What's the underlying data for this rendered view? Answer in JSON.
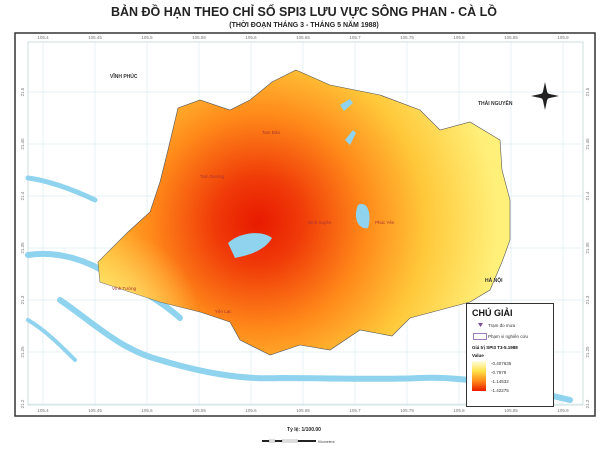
{
  "title": "BẢN ĐỒ HẠN THEO CHỈ SỐ SPI3 LƯU VỰC SÔNG PHAN - CÀ LỒ",
  "subtitle": "(THỜI ĐOẠN THÁNG 3 - THÁNG 5 NĂM 1988)",
  "longitude_ticks": [
    "105.4",
    "105.45",
    "105.5",
    "105.55",
    "105.6",
    "105.65",
    "105.7",
    "105.75",
    "105.8",
    "105.85",
    "105.9"
  ],
  "latitude_ticks": [
    "21.5",
    "21.45",
    "21.4",
    "21.35",
    "21.3",
    "21.25",
    "21.2"
  ],
  "regions": {
    "vinh_phuc": "VĨNH PHÚC",
    "thai_nguyen": "THÁI NGUYÊN",
    "ha_noi": "HÀ NỘI"
  },
  "districts": {
    "tam_dao": "Tam Đảo",
    "tam_duong": "Tam Dương",
    "binh_xuyen": "Bình Xuyên",
    "phuc_yen": "Phúc Yên",
    "vinh_tuong": "Vĩnh Tường",
    "yen_lac": "Yên Lạc"
  },
  "legend": {
    "title": "CHÚ GIẢI",
    "station": "Trạm đo mưa",
    "boundary": "Phạm vi nghiên cứu",
    "value_title": "Giá trị SPI3 T3-5.1988",
    "value_label": "Value",
    "ramp_values": [
      "-0.407635",
      "-0.7979",
      "-1.14532",
      "-1.42275"
    ],
    "ramp_colors": [
      "#fffde0",
      "#ffe24a",
      "#ff8a1a",
      "#e81a00"
    ]
  },
  "scale": {
    "label": "Tỷ lệ: 1/100.00",
    "units": "Kilometers"
  },
  "colors": {
    "river": "#8fd3ee",
    "boundary": "#9b7cc0",
    "grid": "#b9dbe6"
  },
  "icons": {
    "compass": "north-arrow-compass-icon",
    "station": "triangle-station-icon"
  }
}
